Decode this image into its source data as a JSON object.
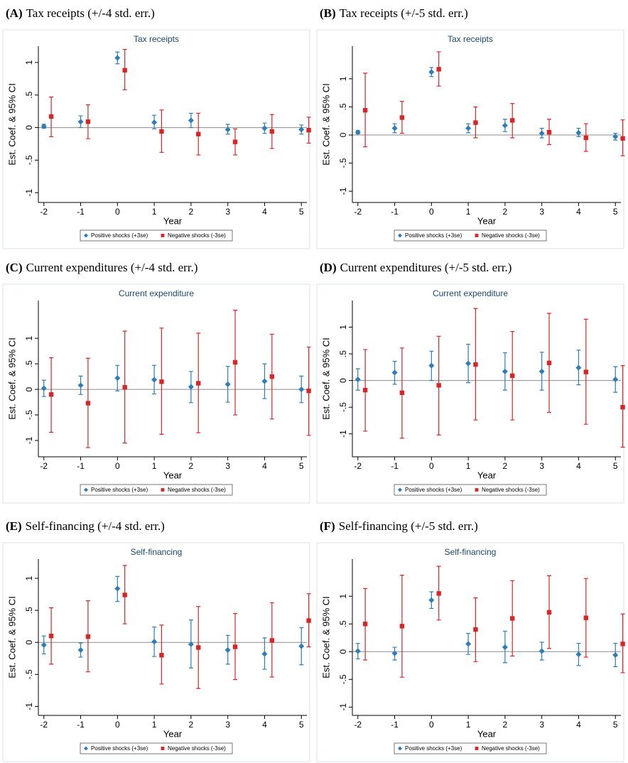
{
  "chart_data": [
    {
      "type": "errorbar",
      "panel_label": "(A)",
      "caption": "Tax receipts (+/-4 std. err.)",
      "title": "Tax receipts",
      "xlabel": "Year",
      "ylabel": "Est. Coef. & 95% CI",
      "x": [
        -2,
        -1,
        0,
        1,
        2,
        3,
        4,
        5
      ],
      "xlim": [
        -2.15,
        5.15
      ],
      "xticks": [
        -2,
        -1,
        0,
        1,
        2,
        3,
        4,
        5
      ],
      "ylim": [
        -1.15,
        1.25
      ],
      "yticks": [
        -1,
        {
          "value": -0.5,
          "label": "-.5"
        },
        0,
        {
          "value": 0.5,
          "label": ".5"
        },
        1
      ],
      "series": [
        {
          "name": "Positive shocks (+3se)",
          "color": "#2e7db8",
          "marker": "diamond",
          "values": [
            0.02,
            0.09,
            1.07,
            0.08,
            0.11,
            -0.03,
            -0.01,
            -0.03
          ],
          "lower": [
            -0.01,
            0.0,
            0.98,
            -0.02,
            0.0,
            -0.1,
            -0.09,
            -0.1
          ],
          "upper": [
            0.05,
            0.18,
            1.16,
            0.19,
            0.22,
            0.05,
            0.07,
            0.04
          ]
        },
        {
          "name": "Negative shocks (-3se)",
          "color": "#d62728",
          "marker": "square",
          "values": [
            0.17,
            0.09,
            0.88,
            -0.06,
            -0.1,
            -0.22,
            -0.06,
            -0.04
          ],
          "lower": [
            -0.14,
            -0.17,
            0.58,
            -0.38,
            -0.42,
            -0.42,
            -0.32,
            -0.24
          ],
          "upper": [
            0.47,
            0.35,
            1.2,
            0.27,
            0.22,
            -0.02,
            0.2,
            0.16
          ]
        }
      ]
    },
    {
      "type": "errorbar",
      "panel_label": "(B)",
      "caption": "Tax receipts (+/-5 std. err.)",
      "title": "Tax receipts",
      "xlabel": "Year",
      "ylabel": "Est. Coef. & 95% CI",
      "x": [
        -2,
        -1,
        0,
        1,
        2,
        3,
        4,
        5
      ],
      "xlim": [
        -2.15,
        5.15
      ],
      "xticks": [
        -2,
        -1,
        0,
        1,
        2,
        3,
        4,
        5
      ],
      "ylim": [
        -1.2,
        1.58
      ],
      "yticks": [
        -1,
        {
          "value": -0.5,
          "label": "-.5"
        },
        0,
        {
          "value": 0.5,
          "label": ".5"
        },
        1
      ],
      "series": [
        {
          "name": "Positive shocks (+3se)",
          "color": "#2e7db8",
          "marker": "diamond",
          "values": [
            0.05,
            0.12,
            1.12,
            0.12,
            0.17,
            0.03,
            0.04,
            -0.03
          ],
          "lower": [
            0.02,
            0.04,
            1.04,
            0.04,
            0.06,
            -0.05,
            -0.03,
            -0.09
          ],
          "upper": [
            0.08,
            0.2,
            1.2,
            0.2,
            0.28,
            0.12,
            0.12,
            0.03
          ]
        },
        {
          "name": "Negative shocks (-3se)",
          "color": "#d62728",
          "marker": "square",
          "values": [
            0.44,
            0.31,
            1.17,
            0.22,
            0.26,
            0.05,
            -0.05,
            -0.06
          ],
          "lower": [
            -0.21,
            0.03,
            0.87,
            -0.05,
            -0.05,
            -0.17,
            -0.29,
            -0.37
          ],
          "upper": [
            1.1,
            0.6,
            1.48,
            0.5,
            0.56,
            0.28,
            0.2,
            0.27
          ]
        }
      ]
    },
    {
      "type": "errorbar",
      "panel_label": "(C)",
      "caption": "Current expenditures (+/-4 std. err.)",
      "title": "Current expenditure",
      "xlabel": "Year",
      "ylabel": "Est. Coef. & 95% CI",
      "x": [
        -2,
        -1,
        0,
        1,
        2,
        3,
        4,
        5
      ],
      "xlim": [
        -2.15,
        5.15
      ],
      "xticks": [
        -2,
        -1,
        0,
        1,
        2,
        3,
        4,
        5
      ],
      "ylim": [
        -1.32,
        1.74
      ],
      "yticks": [
        -1,
        {
          "value": -0.5,
          "label": "-.5"
        },
        0,
        {
          "value": 0.5,
          "label": ".5"
        },
        1
      ],
      "series": [
        {
          "name": "Positive shocks (+3se)",
          "color": "#2e7db8",
          "marker": "diamond",
          "values": [
            0.02,
            0.08,
            0.22,
            0.19,
            0.05,
            0.1,
            0.16,
            0.0
          ],
          "lower": [
            -0.14,
            -0.1,
            -0.03,
            -0.09,
            -0.26,
            -0.25,
            -0.18,
            -0.26
          ],
          "upper": [
            0.18,
            0.26,
            0.47,
            0.47,
            0.35,
            0.45,
            0.5,
            0.26
          ]
        },
        {
          "name": "Negative shocks (-3se)",
          "color": "#d62728",
          "marker": "square",
          "values": [
            -0.1,
            -0.27,
            0.04,
            0.15,
            0.12,
            0.53,
            0.25,
            -0.03
          ],
          "lower": [
            -0.84,
            -1.14,
            -1.05,
            -0.88,
            -0.85,
            -0.5,
            -0.58,
            -0.9
          ],
          "upper": [
            0.62,
            0.61,
            1.14,
            1.2,
            1.1,
            1.55,
            1.08,
            0.83
          ]
        }
      ]
    },
    {
      "type": "errorbar",
      "panel_label": "(D)",
      "caption": "Current expenditures (+/-5 std. err.)",
      "title": "Current expenditure",
      "xlabel": "Year",
      "ylabel": "Est. Coef. & 95% CI",
      "x": [
        -2,
        -1,
        0,
        1,
        2,
        3,
        4,
        5
      ],
      "xlim": [
        -2.15,
        5.15
      ],
      "xticks": [
        -2,
        -1,
        0,
        1,
        2,
        3,
        4,
        5
      ],
      "ylim": [
        -1.43,
        1.5
      ],
      "yticks": [
        -1,
        {
          "value": -0.5,
          "label": "-.5"
        },
        0,
        {
          "value": 0.5,
          "label": ".5"
        },
        1
      ],
      "series": [
        {
          "name": "Positive shocks (+3se)",
          "color": "#2e7db8",
          "marker": "diamond",
          "values": [
            0.02,
            0.15,
            0.28,
            0.32,
            0.17,
            0.17,
            0.24,
            0.02
          ],
          "lower": [
            -0.18,
            -0.07,
            0.0,
            -0.04,
            -0.18,
            -0.18,
            -0.08,
            -0.22
          ],
          "upper": [
            0.22,
            0.36,
            0.55,
            0.68,
            0.52,
            0.53,
            0.57,
            0.26
          ]
        },
        {
          "name": "Negative shocks (-3se)",
          "color": "#d62728",
          "marker": "square",
          "values": [
            -0.18,
            -0.23,
            -0.09,
            0.3,
            0.09,
            0.33,
            0.16,
            -0.5
          ],
          "lower": [
            -0.95,
            -1.08,
            -1.02,
            -0.74,
            -0.74,
            -0.6,
            -0.82,
            -1.25
          ],
          "upper": [
            0.58,
            0.61,
            0.83,
            1.35,
            0.92,
            1.26,
            1.15,
            0.28
          ]
        }
      ]
    },
    {
      "type": "errorbar",
      "panel_label": "(E)",
      "caption": "Self-financing (+/-4 std. err.)",
      "title": "Self-financing",
      "xlabel": "Year",
      "ylabel": "Est. Coef. & 95% CI",
      "x": [
        -2,
        -1,
        0,
        1,
        2,
        3,
        4,
        5
      ],
      "xlim": [
        -2.15,
        5.15
      ],
      "xticks": [
        -2,
        -1,
        0,
        1,
        2,
        3,
        4,
        5
      ],
      "ylim": [
        -1.14,
        1.3
      ],
      "yticks": [
        -1,
        {
          "value": -0.5,
          "label": "-.5"
        },
        0,
        {
          "value": 0.5,
          "label": ".5"
        },
        1
      ],
      "series": [
        {
          "name": "Positive shocks (+3se)",
          "color": "#2e7db8",
          "marker": "diamond",
          "values": [
            -0.04,
            -0.12,
            0.84,
            0.01,
            -0.03,
            -0.12,
            -0.18,
            -0.06
          ],
          "lower": [
            -0.18,
            -0.23,
            0.64,
            -0.22,
            -0.4,
            -0.34,
            -0.42,
            -0.35
          ],
          "upper": [
            0.1,
            -0.01,
            1.03,
            0.24,
            0.35,
            0.11,
            0.07,
            0.23
          ]
        },
        {
          "name": "Negative shocks (-3se)",
          "color": "#d62728",
          "marker": "square",
          "values": [
            0.1,
            0.09,
            0.74,
            -0.2,
            -0.08,
            -0.07,
            0.03,
            0.34
          ],
          "lower": [
            -0.34,
            -0.46,
            0.29,
            -0.65,
            -0.72,
            -0.58,
            -0.54,
            -0.07
          ],
          "upper": [
            0.54,
            0.65,
            1.2,
            0.27,
            0.56,
            0.45,
            0.62,
            0.76
          ]
        }
      ]
    },
    {
      "type": "errorbar",
      "panel_label": "(F)",
      "caption": "Self-financing (+/-5 std. err.)",
      "title": "Self-financing",
      "xlabel": "Year",
      "ylabel": "Est. Coef. & 95% CI",
      "x": [
        -2,
        -1,
        0,
        1,
        2,
        3,
        4,
        5
      ],
      "xlim": [
        -2.15,
        5.15
      ],
      "xticks": [
        -2,
        -1,
        0,
        1,
        2,
        3,
        4,
        5
      ],
      "ylim": [
        -1.15,
        1.67
      ],
      "yticks": [
        -1,
        {
          "value": -0.5,
          "label": "-.5"
        },
        0,
        {
          "value": 0.5,
          "label": ".5"
        },
        1
      ],
      "series": [
        {
          "name": "Positive shocks (+3se)",
          "color": "#2e7db8",
          "marker": "diamond",
          "values": [
            0.01,
            -0.03,
            0.93,
            0.14,
            0.08,
            0.01,
            -0.05,
            -0.06
          ],
          "lower": [
            -0.13,
            -0.15,
            0.78,
            -0.05,
            -0.2,
            -0.15,
            -0.25,
            -0.27
          ],
          "upper": [
            0.15,
            0.08,
            1.08,
            0.33,
            0.37,
            0.17,
            0.15,
            0.15
          ]
        },
        {
          "name": "Negative shocks (-3se)",
          "color": "#d62728",
          "marker": "square",
          "values": [
            0.5,
            0.46,
            1.05,
            0.4,
            0.6,
            0.71,
            0.61,
            0.14
          ],
          "lower": [
            -0.15,
            -0.46,
            0.57,
            -0.18,
            -0.08,
            0.06,
            -0.1,
            -0.38
          ],
          "upper": [
            1.14,
            1.38,
            1.54,
            0.97,
            1.28,
            1.37,
            1.32,
            0.68
          ]
        }
      ]
    }
  ]
}
